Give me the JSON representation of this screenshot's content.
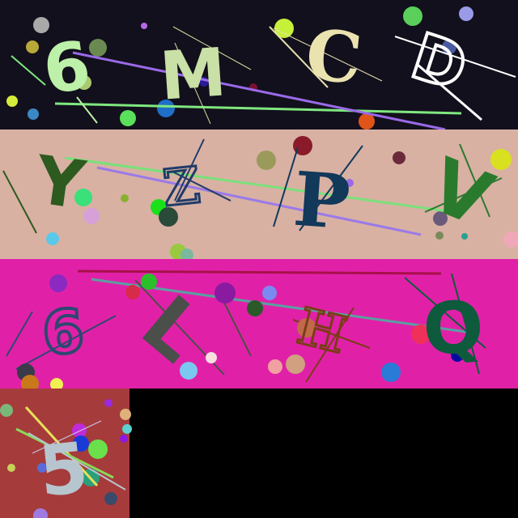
{
  "captcha": {
    "rows": [
      {
        "background": "#12101c",
        "characters": [
          {
            "char": "6",
            "color": "#bdf0a8"
          },
          {
            "char": "M",
            "color": "#c9e0a6"
          },
          {
            "char": "C",
            "color": "#eae3b0"
          },
          {
            "char": "D",
            "color": "#ffffff"
          }
        ]
      },
      {
        "background": "#d8b1a3",
        "characters": [
          {
            "char": "Y",
            "color": "#2d5a1f"
          },
          {
            "char": "Z",
            "color": "#203b68"
          },
          {
            "char": "P",
            "color": "#12385a"
          },
          {
            "char": "V",
            "color": "#2a7a2d"
          }
        ]
      },
      {
        "background": "#e021a8",
        "characters": [
          {
            "char": "6",
            "color": "#2e4870"
          },
          {
            "char": "L",
            "color": "#4a4f4a"
          },
          {
            "char": "H",
            "color": "#7b3c18"
          },
          {
            "char": "Q",
            "color": "#0e5a3c"
          }
        ]
      },
      {
        "background": "#a63b3b",
        "characters": [
          {
            "char": "5",
            "color": "#b7c5cf"
          }
        ]
      }
    ]
  }
}
